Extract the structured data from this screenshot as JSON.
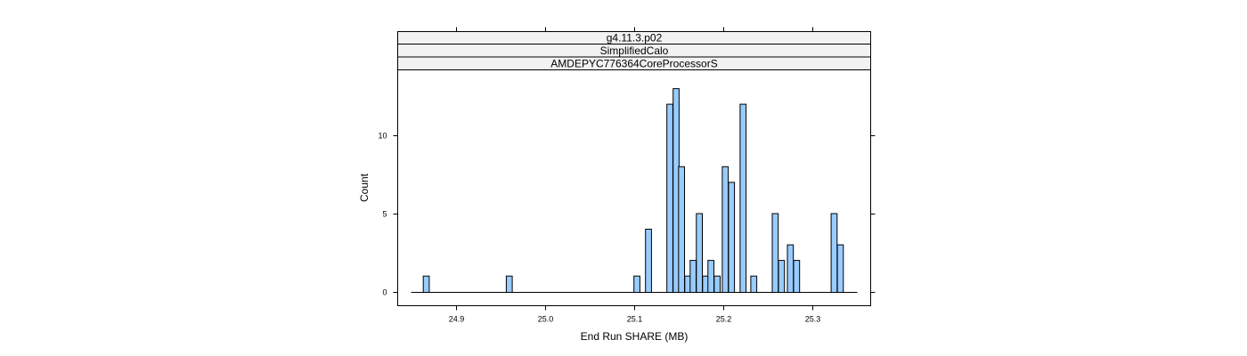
{
  "chart_data": {
    "type": "bar",
    "panel_strips": [
      "g4.11.3.p02",
      "SimplifiedCalo",
      "AMDEPYC776364CoreProcessorS"
    ],
    "xlabel": "End Run SHARE (MB)",
    "ylabel": "Count",
    "xlim": [
      24.835,
      25.365
    ],
    "ylim": [
      -0.9,
      14.2
    ],
    "xticks": [
      24.9,
      25.0,
      25.1,
      25.2,
      25.3
    ],
    "xtick_labels": [
      "24.9",
      "25.0",
      "25.1",
      "25.2",
      "25.3"
    ],
    "yticks": [
      0,
      5,
      10
    ],
    "ytick_labels": [
      "0",
      "5",
      "10"
    ],
    "baseline_range": [
      24.85,
      25.35
    ],
    "bin_width": 0.00667,
    "bar_color": "#99ccff",
    "bars": [
      {
        "x": 24.867,
        "y": 1
      },
      {
        "x": 24.96,
        "y": 1
      },
      {
        "x": 25.103,
        "y": 1
      },
      {
        "x": 25.116,
        "y": 4
      },
      {
        "x": 25.14,
        "y": 12
      },
      {
        "x": 25.147,
        "y": 13
      },
      {
        "x": 25.153,
        "y": 8
      },
      {
        "x": 25.16,
        "y": 1
      },
      {
        "x": 25.166,
        "y": 2
      },
      {
        "x": 25.173,
        "y": 5
      },
      {
        "x": 25.18,
        "y": 1
      },
      {
        "x": 25.186,
        "y": 2
      },
      {
        "x": 25.193,
        "y": 1
      },
      {
        "x": 25.202,
        "y": 8
      },
      {
        "x": 25.209,
        "y": 7
      },
      {
        "x": 25.222,
        "y": 12
      },
      {
        "x": 25.234,
        "y": 1
      },
      {
        "x": 25.258,
        "y": 5
      },
      {
        "x": 25.265,
        "y": 2
      },
      {
        "x": 25.275,
        "y": 3
      },
      {
        "x": 25.282,
        "y": 2
      },
      {
        "x": 25.324,
        "y": 5
      },
      {
        "x": 25.331,
        "y": 3
      }
    ]
  }
}
